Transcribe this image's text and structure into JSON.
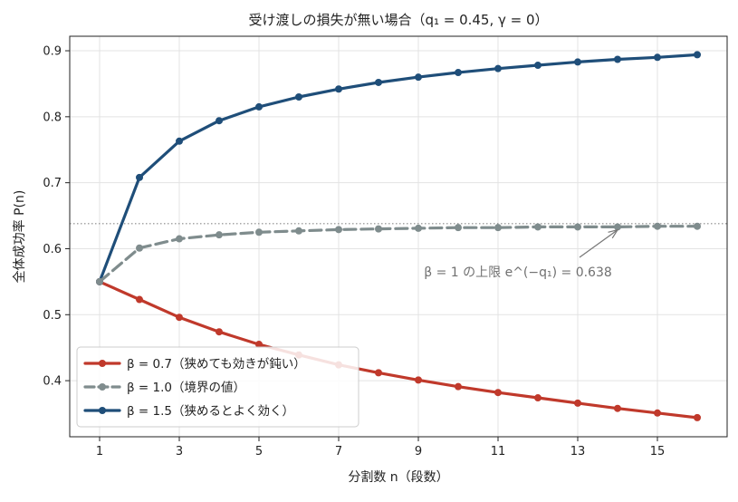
{
  "chart_data": {
    "type": "line",
    "title": "受け渡しの損失が無い場合（q₁ = 0.45, γ = 0）",
    "xlabel": "分割数 n（段数）",
    "ylabel": "全体成功率 P(n)",
    "xlim": [
      0.25,
      16.75
    ],
    "ylim": [
      0.315,
      0.922
    ],
    "xticks": [
      1,
      3,
      5,
      7,
      9,
      11,
      13,
      15
    ],
    "yticks": [
      0.4,
      0.5,
      0.6,
      0.7,
      0.8,
      0.9
    ],
    "grid": true,
    "legend_position": "bottom-left",
    "x": [
      1,
      2,
      3,
      4,
      5,
      6,
      7,
      8,
      9,
      10,
      11,
      12,
      13,
      14,
      15,
      16
    ],
    "series": [
      {
        "name": "β = 0.7（狭めても効きが鈍い）",
        "color": "#c0392b",
        "style": "solid",
        "values": [
          0.55,
          0.523,
          0.496,
          0.474,
          0.455,
          0.439,
          0.424,
          0.412,
          0.401,
          0.391,
          0.382,
          0.374,
          0.366,
          0.358,
          0.351,
          0.344
        ]
      },
      {
        "name": "β = 1.0（境界の値）",
        "color": "#7f8c8d",
        "style": "dashed",
        "values": [
          0.55,
          0.601,
          0.615,
          0.621,
          0.625,
          0.627,
          0.629,
          0.63,
          0.631,
          0.632,
          0.632,
          0.633,
          0.633,
          0.633,
          0.634,
          0.634
        ]
      },
      {
        "name": "β = 1.5（狭めるとよく効く）",
        "color": "#1f4e79",
        "style": "solid",
        "values": [
          0.55,
          0.708,
          0.763,
          0.794,
          0.815,
          0.83,
          0.842,
          0.852,
          0.86,
          0.867,
          0.873,
          0.878,
          0.883,
          0.887,
          0.89,
          0.894
        ]
      }
    ],
    "reference_line": {
      "y": 0.638,
      "color": "#888888",
      "style": "dotted"
    },
    "annotation": {
      "text": "β = 1 の上限 e^(−q₁) = 0.638",
      "label_x": 11.5,
      "label_y": 0.565,
      "arrow_to_x": 14,
      "arrow_to_y": 0.634
    }
  }
}
